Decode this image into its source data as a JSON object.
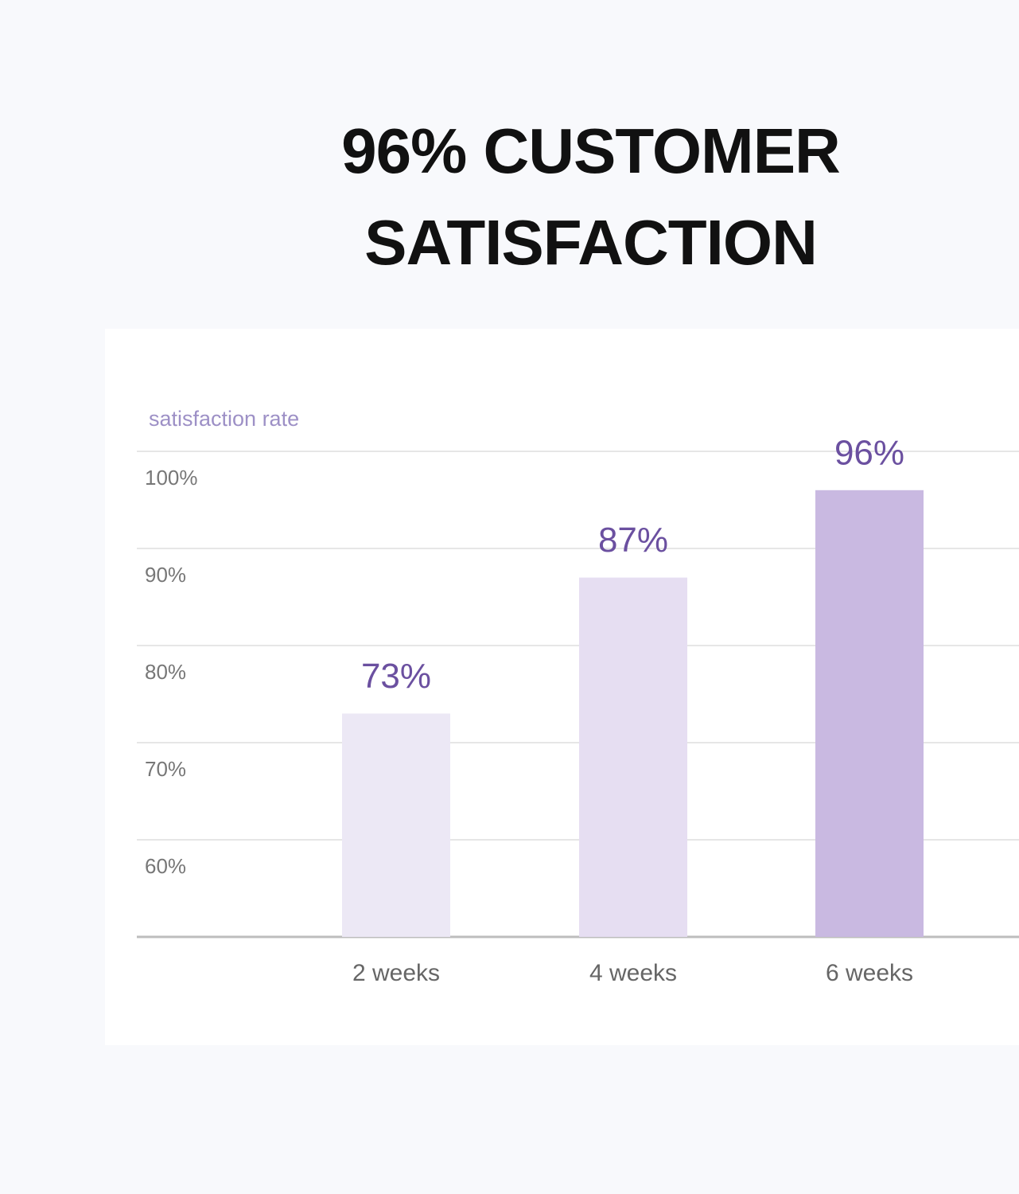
{
  "chart_data": {
    "type": "bar",
    "title": "96% CUSTOMER SATISFACTION",
    "y_label": "satisfaction rate",
    "categories": [
      "2 weeks",
      "4 weeks",
      "6 weeks"
    ],
    "values": [
      73,
      87,
      96
    ],
    "value_labels": [
      "73%",
      "87%",
      "96%"
    ],
    "colors": [
      "#ece8f5",
      "#e6def2",
      "#c9b9e1"
    ],
    "ylim": [
      50,
      100
    ],
    "yticks": [
      {
        "value": 60,
        "label": "60%"
      },
      {
        "value": 70,
        "label": "70%"
      },
      {
        "value": 80,
        "label": "80%"
      },
      {
        "value": 90,
        "label": "90%"
      },
      {
        "value": 100,
        "label": "100%"
      }
    ],
    "grid": true
  }
}
